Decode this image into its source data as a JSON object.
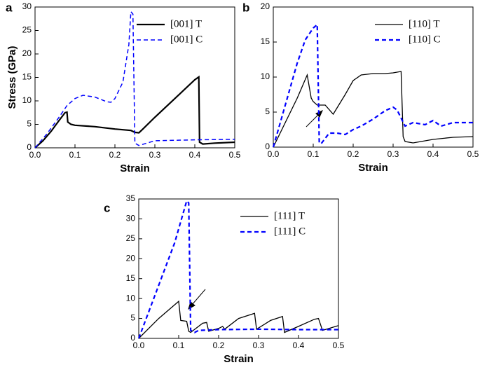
{
  "chart_data": [
    {
      "type": "line",
      "label": "a",
      "xlabel": "Strain",
      "ylabel": "Stress (GPa)",
      "xlim": [
        0,
        0.5
      ],
      "xticks": [
        {
          "value": 0,
          "label": "0.0"
        },
        0.1,
        0.2,
        0.3,
        0.4,
        0.5
      ],
      "ylim": [
        0,
        30
      ],
      "yticks": [
        0,
        5,
        10,
        15,
        20,
        25,
        30
      ],
      "legend": "upper right",
      "series": [
        {
          "name": "[001]  T",
          "color": "#000000",
          "style": "solid",
          "width": 2.2,
          "x": [
            0,
            0.02,
            0.04,
            0.06,
            0.075,
            0.08,
            0.082,
            0.09,
            0.1,
            0.15,
            0.2,
            0.24,
            0.25,
            0.26,
            0.27,
            0.3,
            0.35,
            0.4,
            0.41,
            0.412,
            0.42,
            0.45,
            0.5
          ],
          "values": [
            0,
            1.5,
            3.5,
            5.8,
            7.5,
            7.6,
            5.5,
            5,
            4.8,
            4.5,
            4.0,
            3.7,
            3.3,
            3.2,
            4,
            6.5,
            10.5,
            14.5,
            15.1,
            1.2,
            0.8,
            1.0,
            1.2
          ]
        },
        {
          "name": "[001]  C",
          "color": "#0000ff",
          "style": "dashed",
          "width": 1.5,
          "x": [
            0,
            0.03,
            0.06,
            0.08,
            0.1,
            0.12,
            0.15,
            0.18,
            0.19,
            0.2,
            0.22,
            0.235,
            0.24,
            0.245,
            0.25,
            0.26,
            0.3,
            0.4,
            0.5
          ],
          "values": [
            0,
            3,
            6.5,
            9,
            10.5,
            11.2,
            10.8,
            9.8,
            9.7,
            10.5,
            14,
            22,
            29,
            28.5,
            1.0,
            0.5,
            1.5,
            1.7,
            1.8
          ]
        }
      ]
    },
    {
      "type": "line",
      "label": "b",
      "xlabel": "Strain",
      "xlim": [
        0,
        0.5
      ],
      "xticks": [
        {
          "value": 0,
          "label": "0.0"
        },
        0.1,
        0.2,
        0.3,
        0.4,
        0.5
      ],
      "ylim": [
        0,
        20
      ],
      "yticks": [
        0,
        5,
        10,
        15,
        20
      ],
      "legend": "upper right",
      "series": [
        {
          "name": "[110]  T",
          "color": "#000000",
          "style": "solid",
          "width": 1.3,
          "x": [
            0,
            0.03,
            0.06,
            0.085,
            0.095,
            0.1,
            0.11,
            0.12,
            0.13,
            0.15,
            0.18,
            0.2,
            0.22,
            0.25,
            0.28,
            0.3,
            0.32,
            0.325,
            0.33,
            0.35,
            0.4,
            0.45,
            0.5
          ],
          "values": [
            0,
            3.5,
            7,
            10.3,
            7,
            6.5,
            6,
            6,
            6,
            4.7,
            7.5,
            9.5,
            10.3,
            10.5,
            10.5,
            10.6,
            10.8,
            1.5,
            0.8,
            0.6,
            1.1,
            1.4,
            1.5
          ]
        },
        {
          "name": "[110]  C",
          "color": "#0000ff",
          "style": "dashed",
          "width": 2.2,
          "x": [
            0,
            0.02,
            0.04,
            0.06,
            0.08,
            0.1,
            0.11,
            0.115,
            0.12,
            0.14,
            0.16,
            0.18,
            0.2,
            0.22,
            0.25,
            0.28,
            0.3,
            0.31,
            0.33,
            0.35,
            0.38,
            0.4,
            0.42,
            0.45,
            0.5
          ],
          "values": [
            0,
            4,
            8,
            12,
            15.3,
            17,
            17.5,
            0.6,
            0.5,
            2,
            2,
            1.8,
            2.5,
            3,
            4,
            5.2,
            5.7,
            5.3,
            3,
            3.5,
            3.2,
            3.8,
            3,
            3.5,
            3.5
          ]
        }
      ]
    },
    {
      "type": "line",
      "label": "c",
      "xlabel": "Strain",
      "xlim": [
        0,
        0.5
      ],
      "xticks": [
        {
          "value": 0,
          "label": "0.0"
        },
        0.1,
        0.2,
        0.3,
        0.4,
        0.5
      ],
      "ylim": [
        0,
        35
      ],
      "yticks": [
        0,
        5,
        10,
        15,
        20,
        25,
        30,
        35
      ],
      "legend": "upper right",
      "series": [
        {
          "name": "[111]  T",
          "color": "#000000",
          "style": "solid",
          "width": 1.3,
          "x": [
            0,
            0.05,
            0.1,
            0.105,
            0.12,
            0.125,
            0.13,
            0.16,
            0.17,
            0.175,
            0.2,
            0.21,
            0.215,
            0.25,
            0.29,
            0.295,
            0.33,
            0.36,
            0.365,
            0.4,
            0.44,
            0.45,
            0.46,
            0.5
          ],
          "values": [
            0,
            5,
            9.3,
            4.5,
            4.3,
            1.8,
            1.5,
            3.8,
            4,
            1.8,
            2.5,
            3,
            2.3,
            5,
            6.3,
            2.3,
            4.5,
            5.5,
            1.5,
            3,
            4.8,
            5,
            2,
            3.2
          ]
        },
        {
          "name": "[111]  C",
          "color": "#0000ff",
          "style": "dashed",
          "width": 2.2,
          "x": [
            0,
            0.03,
            0.06,
            0.09,
            0.12,
            0.125,
            0.13,
            0.14,
            0.15,
            0.2,
            0.3,
            0.4,
            0.5
          ],
          "values": [
            0,
            8,
            16,
            24,
            34.5,
            34,
            2,
            1.5,
            2,
            2.2,
            2.3,
            2.2,
            2.2
          ]
        }
      ]
    }
  ]
}
